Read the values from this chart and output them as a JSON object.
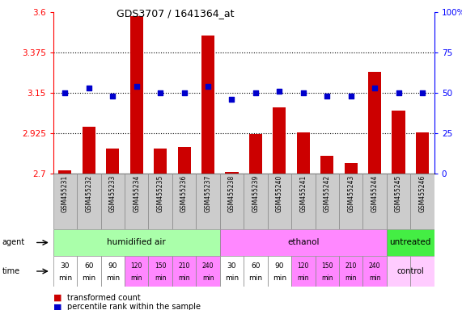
{
  "title": "GDS3707 / 1641364_at",
  "samples": [
    "GSM455231",
    "GSM455232",
    "GSM455233",
    "GSM455234",
    "GSM455235",
    "GSM455236",
    "GSM455237",
    "GSM455238",
    "GSM455239",
    "GSM455240",
    "GSM455241",
    "GSM455242",
    "GSM455243",
    "GSM455244",
    "GSM455245",
    "GSM455246"
  ],
  "transformed_count": [
    2.72,
    2.96,
    2.84,
    3.58,
    2.84,
    2.85,
    3.47,
    2.71,
    2.92,
    3.07,
    2.93,
    2.8,
    2.76,
    3.27,
    3.05,
    2.93
  ],
  "percentile_rank": [
    50,
    53,
    48,
    54,
    50,
    50,
    54,
    46,
    50,
    51,
    50,
    48,
    48,
    53,
    50,
    50
  ],
  "ylim_left": [
    2.7,
    3.6
  ],
  "ylim_right": [
    0,
    100
  ],
  "yticks_left": [
    2.7,
    2.925,
    3.15,
    3.375,
    3.6
  ],
  "yticks_right": [
    0,
    25,
    50,
    75,
    100
  ],
  "ytick_labels_left": [
    "2.7",
    "2.925",
    "3.15",
    "3.375",
    "3.6"
  ],
  "ytick_labels_right": [
    "0",
    "25",
    "50",
    "75",
    "100%"
  ],
  "hlines": [
    2.925,
    3.15,
    3.375
  ],
  "bar_color": "#cc0000",
  "dot_color": "#0000cc",
  "agent_groups": [
    {
      "label": "humidified air",
      "start": 0,
      "end": 7,
      "color": "#aaffaa"
    },
    {
      "label": "ethanol",
      "start": 7,
      "end": 14,
      "color": "#ff88ff"
    },
    {
      "label": "untreated",
      "start": 14,
      "end": 16,
      "color": "#44ee44"
    }
  ],
  "time_colors": [
    "#ffffff",
    "#ffffff",
    "#ffffff",
    "#ff88ff",
    "#ff88ff",
    "#ff88ff",
    "#ff88ff",
    "#ffffff",
    "#ffffff",
    "#ffffff",
    "#ff88ff",
    "#ff88ff",
    "#ff88ff",
    "#ff88ff",
    "#ffccff",
    "#ffccff"
  ],
  "time_labels": [
    "30",
    "60",
    "90",
    "120",
    "150",
    "210",
    "240",
    "30",
    "60",
    "90",
    "120",
    "150",
    "210",
    "240",
    "",
    ""
  ],
  "control_label": "control",
  "legend_bar_label": "transformed count",
  "legend_dot_label": "percentile rank within the sample",
  "agent_label": "agent",
  "time_label": "time",
  "bg_color": "#ffffff",
  "sample_box_color": "#cccccc",
  "sample_box_edge": "#888888"
}
